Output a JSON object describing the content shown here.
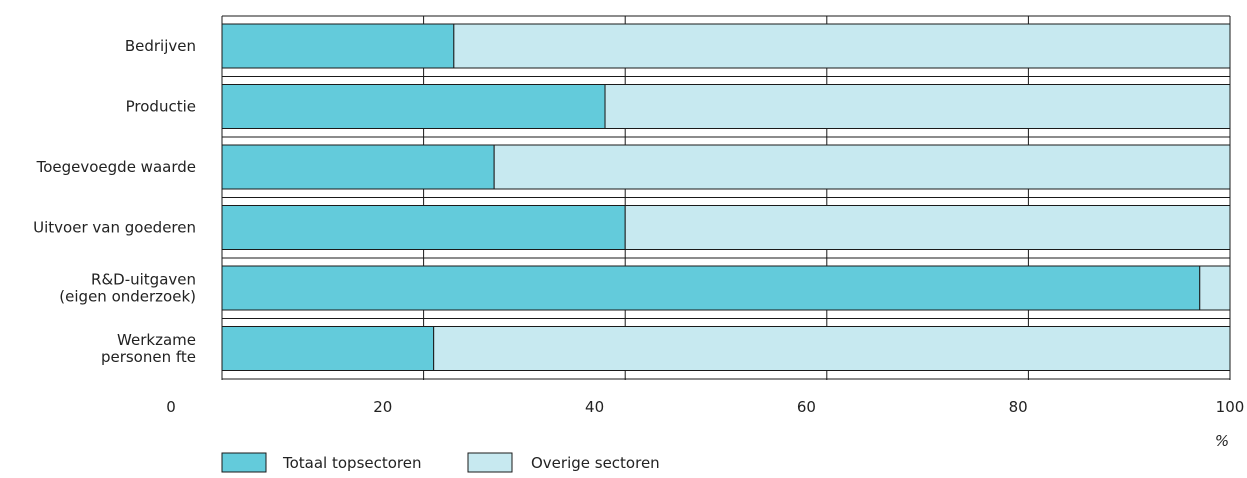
{
  "chart_data": {
    "type": "bar",
    "orientation": "horizontal",
    "stacked": true,
    "categories": [
      [
        "Bedrijven"
      ],
      [
        "Productie"
      ],
      [
        "Toegevoegde waarde"
      ],
      [
        "Uitvoer van goederen"
      ],
      [
        "R&D-uitgaven",
        "(eigen onderzoek)"
      ],
      [
        "Werkzame",
        "personen fte"
      ]
    ],
    "series": [
      {
        "name": "Totaal topsectoren",
        "values": [
          23,
          38,
          27,
          40,
          97,
          21
        ],
        "color": "#63cbdb"
      },
      {
        "name": "Overige sectoren",
        "values": [
          77,
          62,
          73,
          60,
          3,
          79
        ],
        "color": "#c7e9f0"
      }
    ],
    "x_ticks": [
      "0",
      "20",
      "40",
      "60",
      "80",
      "100"
    ],
    "xlim": [
      0,
      100
    ],
    "unit": "%",
    "grid": true,
    "legend_position": "bottom-left"
  }
}
